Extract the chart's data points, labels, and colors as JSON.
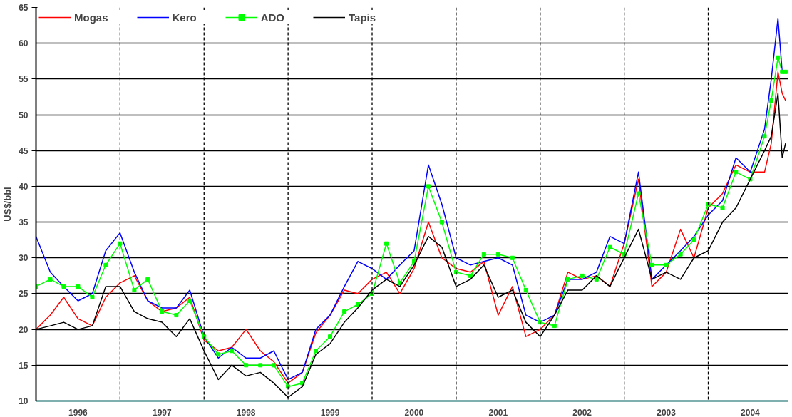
{
  "chart_data": {
    "type": "line",
    "ylabel": "US$/bbl",
    "x": [
      1996.0,
      1996.17,
      1996.33,
      1996.5,
      1996.67,
      1996.83,
      1997.0,
      1997.17,
      1997.33,
      1997.5,
      1997.67,
      1997.83,
      1998.0,
      1998.17,
      1998.33,
      1998.5,
      1998.67,
      1998.83,
      1999.0,
      1999.17,
      1999.33,
      1999.5,
      1999.67,
      1999.83,
      2000.0,
      2000.17,
      2000.33,
      2000.5,
      2000.67,
      2000.83,
      2001.0,
      2001.17,
      2001.33,
      2001.5,
      2001.67,
      2001.83,
      2002.0,
      2002.17,
      2002.33,
      2002.5,
      2002.67,
      2002.83,
      2003.0,
      2003.17,
      2003.33,
      2003.5,
      2003.67,
      2003.83,
      2004.0,
      2004.17,
      2004.33,
      2004.5,
      2004.67,
      2004.75,
      2004.83,
      2004.88,
      2004.92
    ],
    "series": [
      {
        "name": "Mogas",
        "color": "#ff0000",
        "values": [
          20,
          22,
          24.5,
          21.5,
          20.5,
          24.5,
          26.5,
          27.5,
          24,
          22.5,
          23,
          24.5,
          18.5,
          17,
          17.5,
          20,
          17,
          15.5,
          12.5,
          14,
          19.5,
          22,
          25.5,
          25,
          27,
          28,
          25,
          28.5,
          35,
          30,
          28.5,
          28,
          29.5,
          22,
          26,
          19,
          20,
          22,
          28,
          27,
          27.5,
          26,
          32,
          41,
          26,
          28,
          34,
          30,
          37,
          39,
          43,
          42,
          42,
          46,
          56,
          53,
          52
        ]
      },
      {
        "name": "Kero",
        "color": "#0000ff",
        "values": [
          33,
          28,
          26,
          24,
          25,
          31,
          33.5,
          28,
          24,
          23,
          23,
          25.5,
          19,
          16,
          17.5,
          16,
          16,
          17,
          13,
          14,
          20,
          22,
          26,
          29.5,
          28.5,
          27,
          29,
          31,
          43,
          37.5,
          30,
          29,
          29.5,
          30,
          29,
          22,
          21,
          22,
          27,
          27,
          28,
          33,
          32,
          42,
          27,
          29,
          31,
          33,
          36,
          38,
          44,
          42,
          48,
          55,
          63.5,
          56,
          56
        ]
      },
      {
        "name": "ADO",
        "color": "#00ff00",
        "marker": "square",
        "values": [
          26,
          27,
          26,
          26,
          24.5,
          29,
          32,
          25.5,
          27,
          22.5,
          22,
          24,
          19,
          16.5,
          17,
          15,
          15,
          15,
          12,
          12.5,
          17,
          19,
          22.5,
          23.5,
          25,
          32,
          26.5,
          29.5,
          40,
          35,
          28,
          27.5,
          30.5,
          30.5,
          30,
          25.5,
          21,
          20.5,
          27,
          27.5,
          27,
          31.5,
          30.5,
          39,
          29,
          29,
          30.5,
          32.5,
          37.5,
          37,
          42,
          41,
          47,
          52,
          58,
          56,
          56
        ]
      },
      {
        "name": "Tapis",
        "color": "#000000",
        "values": [
          20,
          20.5,
          21,
          20,
          20.5,
          26,
          26,
          22.5,
          21.5,
          21,
          19,
          21.5,
          17,
          13,
          15,
          13.5,
          14,
          12.5,
          10.5,
          12,
          16.5,
          18,
          21,
          23,
          25.5,
          27,
          26,
          29,
          33,
          31.5,
          26,
          27,
          29,
          24.5,
          25.5,
          21,
          19,
          22,
          25.5,
          25.5,
          27.5,
          26,
          30,
          34,
          27,
          28,
          27,
          30,
          31,
          35,
          37,
          41,
          45,
          47,
          53,
          44,
          46
        ]
      }
    ],
    "xlim": [
      1996,
      2004.95
    ],
    "xticks": [
      {
        "value": 1996.5,
        "label": "1996"
      },
      {
        "value": 1997.5,
        "label": "1997"
      },
      {
        "value": 1998.5,
        "label": "1998"
      },
      {
        "value": 1999.5,
        "label": "1999"
      },
      {
        "value": 2000.5,
        "label": "2000"
      },
      {
        "value": 2001.5,
        "label": "2001"
      },
      {
        "value": 2002.5,
        "label": "2002"
      },
      {
        "value": 2003.5,
        "label": "2003"
      },
      {
        "value": 2004.5,
        "label": "2004"
      }
    ],
    "ylim": [
      10,
      65
    ],
    "yticks": [
      10,
      15,
      20,
      25,
      30,
      35,
      40,
      45,
      50,
      55,
      60,
      65
    ],
    "ref_lines": [
      {
        "axis": "x",
        "value": 1997,
        "line_style": "dashed",
        "color": "#000000"
      },
      {
        "axis": "x",
        "value": 1998,
        "line_style": "dashed",
        "color": "#000000"
      },
      {
        "axis": "x",
        "value": 1999,
        "line_style": "dashed",
        "color": "#000000"
      },
      {
        "axis": "x",
        "value": 2000,
        "line_style": "dashed",
        "color": "#000000"
      },
      {
        "axis": "x",
        "value": 2001,
        "line_style": "dashed",
        "color": "#000000"
      },
      {
        "axis": "x",
        "value": 2002,
        "line_style": "dashed",
        "color": "#000000"
      },
      {
        "axis": "x",
        "value": 2003,
        "line_style": "dashed",
        "color": "#000000"
      },
      {
        "axis": "x",
        "value": 2004,
        "line_style": "dashed",
        "color": "#000000"
      }
    ],
    "grid": "y",
    "legend": "top left",
    "marker": "none",
    "line_style": "solid"
  }
}
